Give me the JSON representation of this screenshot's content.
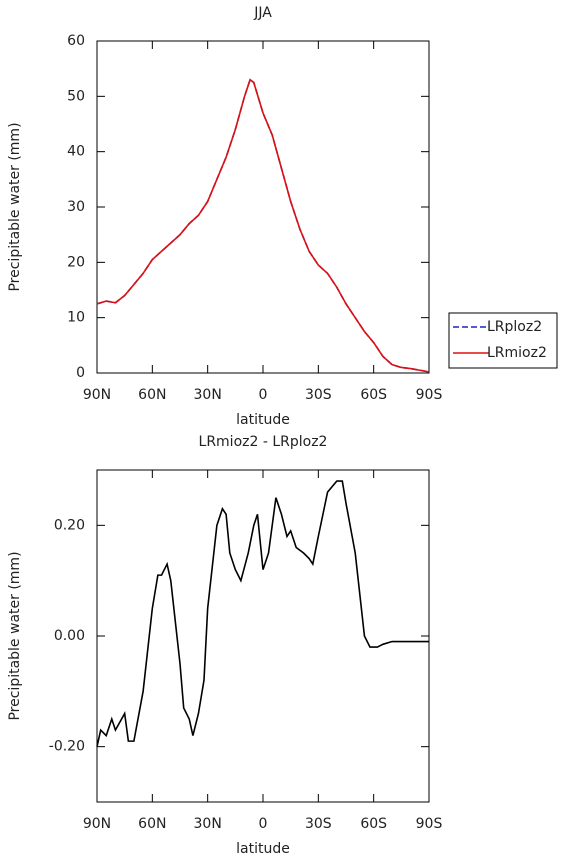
{
  "chart_data": [
    {
      "type": "line",
      "title": "JJA",
      "x_label": "latitude",
      "y_label": "Precipitable water (mm)",
      "xlim": [
        90,
        -90
      ],
      "ylim": [
        0,
        60
      ],
      "xticks": [
        {
          "value": 90,
          "label": "90N"
        },
        {
          "value": 60,
          "label": "60N"
        },
        {
          "value": 30,
          "label": "30N"
        },
        0,
        {
          "value": -30,
          "label": "30S"
        },
        {
          "value": -60,
          "label": "60S"
        },
        {
          "value": -90,
          "label": "90S"
        }
      ],
      "yticks": [
        0,
        10,
        20,
        30,
        40,
        50,
        60
      ],
      "legend": "right",
      "x": [
        90,
        85,
        80,
        75,
        70,
        65,
        60,
        55,
        50,
        45,
        40,
        35,
        30,
        25,
        20,
        15,
        10,
        7,
        5,
        0,
        -5,
        -10,
        -15,
        -20,
        -25,
        -30,
        -35,
        -40,
        -45,
        -50,
        -55,
        -60,
        -65,
        -70,
        -75,
        -80,
        -85,
        -90
      ],
      "series": [
        {
          "name": "LRploz2",
          "color": "#2222cc",
          "dashed": true,
          "values": [
            12.5,
            13,
            12.7,
            14,
            16,
            18,
            20.5,
            22,
            23.5,
            25,
            27,
            28.5,
            31,
            35,
            39,
            44,
            50,
            53,
            52.5,
            47,
            43,
            37,
            31,
            26,
            22,
            19.5,
            18,
            15.5,
            12.5,
            10,
            7.5,
            5.5,
            3,
            1.5,
            1,
            0.8,
            0.5,
            0.2
          ]
        },
        {
          "name": "LRmioz2",
          "color": "#dd1111",
          "dashed": false,
          "values": [
            12.5,
            13,
            12.7,
            14,
            16,
            18,
            20.5,
            22,
            23.5,
            25,
            27,
            28.5,
            31,
            35,
            39,
            44,
            50,
            53,
            52.5,
            47,
            43,
            37,
            31,
            26,
            22,
            19.5,
            18,
            15.5,
            12.5,
            10,
            7.5,
            5.5,
            3,
            1.5,
            1,
            0.8,
            0.5,
            0.2
          ]
        }
      ]
    },
    {
      "type": "line",
      "title": "LRmioz2 - LRploz2",
      "x_label": "latitude",
      "y_label": "Precipitable water (mm)",
      "xlim": [
        90,
        -90
      ],
      "ylim": [
        -0.3,
        0.3
      ],
      "xticks": [
        {
          "value": 90,
          "label": "90N"
        },
        {
          "value": 60,
          "label": "60N"
        },
        {
          "value": 30,
          "label": "30N"
        },
        0,
        {
          "value": -30,
          "label": "30S"
        },
        {
          "value": -60,
          "label": "60S"
        },
        {
          "value": -90,
          "label": "90S"
        }
      ],
      "yticks": [
        {
          "value": -0.2,
          "label": "-0.20"
        },
        {
          "value": 0,
          "label": "0.00"
        },
        {
          "value": 0.2,
          "label": "0.20"
        }
      ],
      "color": "#000000",
      "x": [
        90,
        88,
        85,
        82,
        80,
        75,
        73,
        70,
        65,
        60,
        57,
        55,
        52,
        50,
        45,
        43,
        40,
        38,
        35,
        32,
        30,
        25,
        22,
        20,
        18,
        15,
        12,
        8,
        5,
        3,
        0,
        -3,
        -7,
        -10,
        -13,
        -15,
        -18,
        -22,
        -25,
        -27,
        -30,
        -35,
        -40,
        -43,
        -45,
        -50,
        -55,
        -58,
        -62,
        -65,
        -70,
        -75,
        -80,
        -85,
        -90
      ],
      "values": [
        -0.2,
        -0.17,
        -0.18,
        -0.15,
        -0.17,
        -0.14,
        -0.19,
        -0.19,
        -0.1,
        0.05,
        0.11,
        0.11,
        0.13,
        0.1,
        -0.05,
        -0.13,
        -0.15,
        -0.18,
        -0.14,
        -0.08,
        0.05,
        0.2,
        0.23,
        0.22,
        0.15,
        0.12,
        0.1,
        0.15,
        0.2,
        0.22,
        0.12,
        0.15,
        0.25,
        0.22,
        0.18,
        0.19,
        0.16,
        0.15,
        0.14,
        0.13,
        0.18,
        0.26,
        0.28,
        0.28,
        0.24,
        0.15,
        0.0,
        -0.02,
        -0.02,
        -0.015,
        -0.01,
        -0.01,
        -0.01,
        -0.01,
        -0.01
      ]
    }
  ]
}
